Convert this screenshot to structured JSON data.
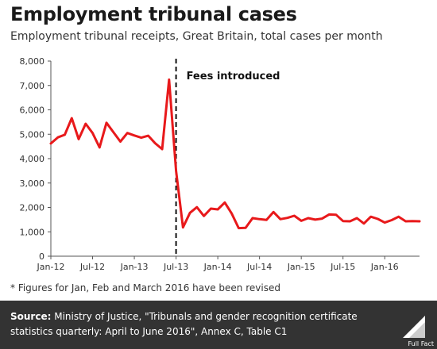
{
  "header": {
    "title": "Employment tribunal cases",
    "subtitle": "Employment tribunal receipts, Great Britain, total cases per month"
  },
  "footnote": "* Figures for Jan, Feb and March 2016 have been revised",
  "footer": {
    "source_label": "Source:",
    "source_text": " Ministry of Justice, \"Tribunals and gender recognition certificate statistics quarterly: April to June 2016\", Annex C, Table C1",
    "logo_text": "Full Fact",
    "logo_icon": "full-fact-logo-icon"
  },
  "colors": {
    "line": "#e8191b",
    "footer_bg": "#333333",
    "axis": "#555555"
  },
  "chart_data": {
    "type": "line",
    "title": "Employment tribunal cases",
    "subtitle": "Employment tribunal receipts, Great Britain, total cases per month",
    "xlabel": "",
    "ylabel": "",
    "ylim": [
      0,
      8000
    ],
    "yticks": [
      0,
      1000,
      2000,
      3000,
      4000,
      5000,
      6000,
      7000,
      8000
    ],
    "ytick_labels": [
      "0",
      "1,000",
      "2,000",
      "3,000",
      "4,000",
      "5,000",
      "6,000",
      "7,000",
      "8,000"
    ],
    "xtick_labels": [
      "Jan-12",
      "Jul-12",
      "Jan-13",
      "Jul-13",
      "Jan-14",
      "Jul-14",
      "Jan-15",
      "Jul-15",
      "Jan-16"
    ],
    "xtick_months": [
      "2012-01",
      "2012-07",
      "2013-01",
      "2013-07",
      "2014-01",
      "2014-07",
      "2015-01",
      "2015-07",
      "2016-01"
    ],
    "grid": false,
    "legend": "none",
    "series": [
      {
        "x": [
          "2012-01",
          "2012-02",
          "2012-03",
          "2012-04",
          "2012-05",
          "2012-06",
          "2012-07",
          "2012-08",
          "2012-09",
          "2012-10",
          "2012-11",
          "2012-12",
          "2013-01",
          "2013-02",
          "2013-03",
          "2013-04",
          "2013-05",
          "2013-06",
          "2013-07",
          "2013-08",
          "2013-09",
          "2013-10",
          "2013-11",
          "2013-12",
          "2014-01",
          "2014-02",
          "2014-03",
          "2014-04",
          "2014-05",
          "2014-06",
          "2014-07",
          "2014-08",
          "2014-09",
          "2014-10",
          "2014-11",
          "2014-12",
          "2015-01",
          "2015-02",
          "2015-03",
          "2015-04",
          "2015-05",
          "2015-06",
          "2015-07",
          "2015-08",
          "2015-09",
          "2015-10",
          "2015-11",
          "2015-12",
          "2016-01",
          "2016-02",
          "2016-03",
          "2016-04",
          "2016-05",
          "2016-06"
        ],
        "values": [
          4620,
          4870,
          4980,
          5660,
          4800,
          5430,
          5050,
          4460,
          5470,
          5080,
          4700,
          5050,
          4950,
          4860,
          4940,
          4630,
          4390,
          7240,
          3500,
          1180,
          1780,
          2010,
          1650,
          1950,
          1920,
          2200,
          1750,
          1150,
          1160,
          1560,
          1520,
          1490,
          1810,
          1520,
          1570,
          1660,
          1450,
          1560,
          1500,
          1540,
          1710,
          1700,
          1440,
          1430,
          1560,
          1340,
          1620,
          1530,
          1380,
          1480,
          1620,
          1430,
          1440,
          1430
        ]
      }
    ],
    "annotations": [
      {
        "x": "2013-07",
        "label": "Fees introduced",
        "style": "dashed-vertical-line"
      }
    ]
  }
}
